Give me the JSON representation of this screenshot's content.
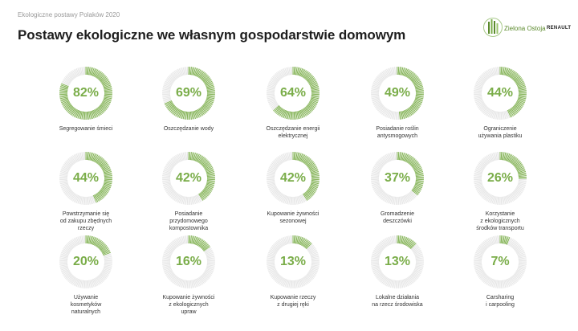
{
  "header": {
    "subtitle": "Ekologiczne postawy Polaków 2020",
    "title": "Postawy ekologiczne we własnym gospodarstwie domowym"
  },
  "brand": {
    "name": "Zielona Ostoja",
    "partner": "RENAULT",
    "logo_icon": "forest-logo-icon"
  },
  "colors": {
    "accent": "#7aad49",
    "track": "#e4e4e4",
    "title": "#1e1e1e"
  },
  "chart_data": {
    "type": "donut",
    "title": "Postawy ekologiczne we własnym gospodarstwie domowym",
    "items": [
      {
        "label_lines": [
          "Segregowanie śmieci"
        ],
        "value": 82,
        "display": "82%"
      },
      {
        "label_lines": [
          "Oszczędzanie wody"
        ],
        "value": 69,
        "display": "69%"
      },
      {
        "label_lines": [
          "Oszczędzanie energii",
          "elektrycznej"
        ],
        "value": 64,
        "display": "64%"
      },
      {
        "label_lines": [
          "Posiadanie roślin",
          "antysmogowych"
        ],
        "value": 49,
        "display": "49%"
      },
      {
        "label_lines": [
          "Ograniczenie",
          "używania plastiku"
        ],
        "value": 44,
        "display": "44%"
      },
      {
        "label_lines": [
          "Powstrzymanie się",
          "od zakupu zbędnych",
          "rzeczy"
        ],
        "value": 44,
        "display": "44%"
      },
      {
        "label_lines": [
          "Posiadanie",
          "przydomowego",
          "kompostownika"
        ],
        "value": 42,
        "display": "42%"
      },
      {
        "label_lines": [
          "Kupowanie żywności",
          "sezonowej"
        ],
        "value": 42,
        "display": "42%"
      },
      {
        "label_lines": [
          "Gromadzenie",
          "deszczówki"
        ],
        "value": 37,
        "display": "37%"
      },
      {
        "label_lines": [
          "Korzystanie",
          "z ekologicznych",
          "środków transportu"
        ],
        "value": 26,
        "display": "26%"
      },
      {
        "label_lines": [
          "Używanie",
          "kosmetyków",
          "naturalnych"
        ],
        "value": 20,
        "display": "20%"
      },
      {
        "label_lines": [
          "Kupowanie żywności",
          "z ekologicznych",
          "upraw"
        ],
        "value": 16,
        "display": "16%"
      },
      {
        "label_lines": [
          "Kupowanie rzeczy",
          "z drugiej ręki"
        ],
        "value": 13,
        "display": "13%"
      },
      {
        "label_lines": [
          "Lokalne działania",
          "na rzecz środowiska"
        ],
        "value": 13,
        "display": "13%"
      },
      {
        "label_lines": [
          "Carsharing",
          "i carpooling"
        ],
        "value": 7,
        "display": "7%"
      }
    ]
  }
}
